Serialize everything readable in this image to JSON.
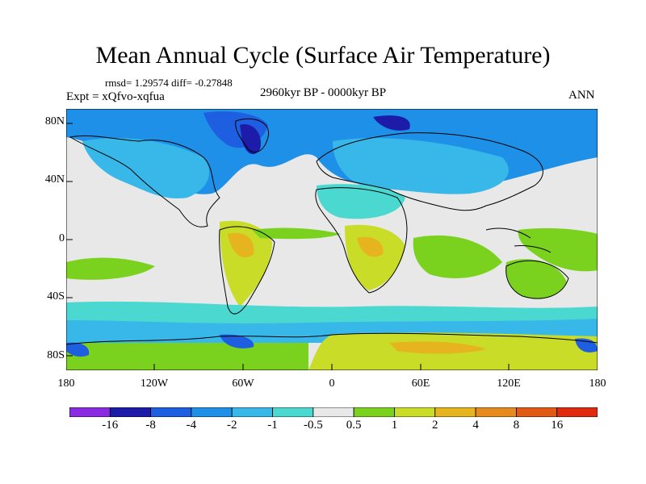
{
  "title": "Mean Annual Cycle (Surface Air Temperature)",
  "stats": "rmsd= 1.29574 diff= -0.27848",
  "experiment": "Expt = xQfvo-xqfua",
  "period": "2960kyr BP - 0000kyr BP",
  "season": "ANN",
  "map": {
    "type": "map",
    "projection": "cylindrical equidistant",
    "variable": "Surface Air Temperature anomaly",
    "lat_ticks": [
      "80N",
      "40N",
      "0",
      "40S",
      "80S"
    ],
    "lon_ticks": [
      "180",
      "120W",
      "60W",
      "0",
      "60E",
      "120E",
      "180"
    ]
  },
  "colorbar": {
    "levels": [
      "-16",
      "-8",
      "-4",
      "-2",
      "-1",
      "-0.5",
      "0.5",
      "1",
      "2",
      "4",
      "8",
      "16"
    ],
    "colors": [
      "#8a2be2",
      "#1c1ca8",
      "#1e5ee0",
      "#1e90e8",
      "#38b8e8",
      "#4ad8d0",
      "#e8e8e8",
      "#7ad21e",
      "#c8dc28",
      "#e6b41e",
      "#e68a1e",
      "#e05a14",
      "#e02a0e"
    ]
  }
}
